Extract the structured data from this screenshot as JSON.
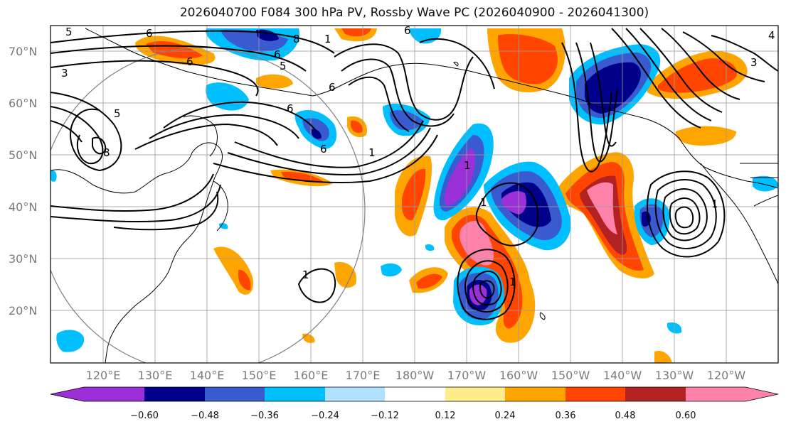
{
  "title": "2026040700 F084 300 hPa PV, Rossby Wave PC (2026040900 - 2026041300)",
  "lat_labels": [
    "70°N",
    "60°N",
    "50°N",
    "40°N",
    "30°N",
    "20°N"
  ],
  "lon_labels": [
    "120°E",
    "130°E",
    "140°E",
    "150°E",
    "160°E",
    "170°E",
    "180°W",
    "170°W",
    "160°W",
    "150°W",
    "140°W",
    "130°W",
    "120°W"
  ],
  "colorbar": {
    "tick_labels": [
      "−0.60",
      "−0.48",
      "−0.36",
      "−0.24",
      "−0.12",
      "0.12",
      "0.24",
      "0.36",
      "0.48",
      "0.60"
    ],
    "colors": [
      "#9b30d9",
      "#00008b",
      "#3a5bd0",
      "#00bfff",
      "#b0e2ff",
      "#ffffff",
      "#ffec8b",
      "#ffa500",
      "#ff4500",
      "#b22222",
      "#ff82ab"
    ]
  },
  "contour_labels": [
    "5",
    "8",
    "6",
    "3",
    "5",
    "6",
    "6",
    "5",
    "6",
    "8",
    "6",
    "1",
    "1",
    "1",
    "1",
    "3",
    "6",
    "1",
    "6",
    "1",
    "4",
    "1"
  ],
  "colors": {
    "coast": "#000000",
    "grid": "#9a9a9a",
    "circle": "#808080"
  }
}
